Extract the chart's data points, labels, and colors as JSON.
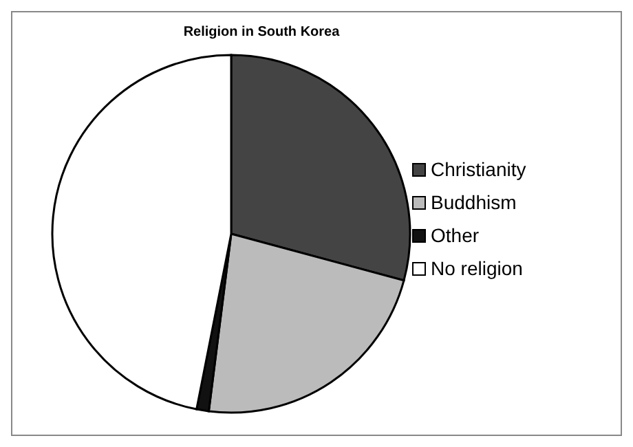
{
  "chart_data": {
    "type": "pie",
    "title": "Religion in  South Korea",
    "categories": [
      "Christianity",
      "Buddhism",
      "Other",
      "No religion"
    ],
    "values": [
      29.2,
      22.8,
      1.1,
      46.9
    ],
    "colors": [
      "#444444",
      "#bbbbbb",
      "#111111",
      "#ffffff"
    ],
    "legend": "right"
  }
}
